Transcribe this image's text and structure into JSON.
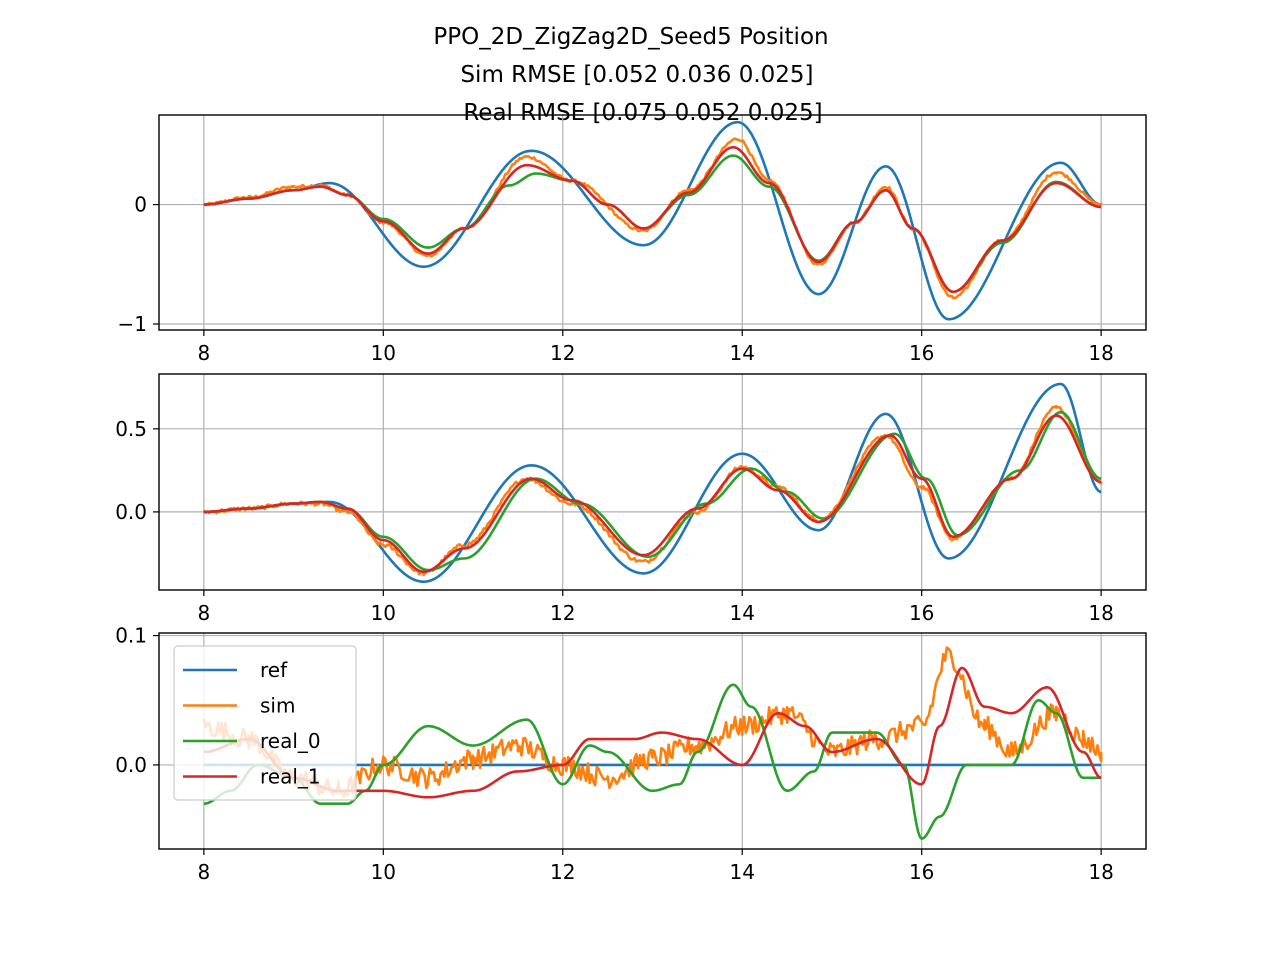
{
  "figure": {
    "title_lines": [
      "PPO_2D_ZigZag2D_Seed5   Position",
      "Sim RMSE [0.052 0.036 0.025]",
      "Real RMSE [0.075 0.052 0.025]"
    ]
  },
  "colors": {
    "ref": "#1f77b4",
    "sim": "#ff7f0e",
    "real_0": "#2ca02c",
    "real_1": "#d62728",
    "grid": "#b0b0b0",
    "axes": "#000000"
  },
  "chart_data": [
    {
      "type": "line",
      "xlim": [
        7.5,
        18.5
      ],
      "ylim": [
        -1.05,
        0.75
      ],
      "xticks": [
        8,
        10,
        12,
        14,
        16,
        18
      ],
      "xtick_labels": [
        "8",
        "10",
        "12",
        "14",
        "16",
        "18"
      ],
      "yticks": [
        -1,
        0
      ],
      "ytick_labels": [
        "−1",
        "0"
      ],
      "grid": true,
      "series": [
        {
          "name": "ref",
          "color": "#1f77b4",
          "noise": 0,
          "points": [
            [
              8,
              0
            ],
            [
              8.5,
              0.05
            ],
            [
              9,
              0.12
            ],
            [
              9.4,
              0.18
            ],
            [
              10.45,
              -0.52
            ],
            [
              11.65,
              0.45
            ],
            [
              12.9,
              -0.34
            ],
            [
              13.95,
              0.69
            ],
            [
              14.85,
              -0.75
            ],
            [
              15.6,
              0.32
            ],
            [
              16.3,
              -0.96
            ],
            [
              17.55,
              0.35
            ],
            [
              18,
              0
            ]
          ]
        },
        {
          "name": "sim",
          "color": "#ff7f0e",
          "noise": 0.012,
          "points": [
            [
              8,
              0
            ],
            [
              8.5,
              0.06
            ],
            [
              9,
              0.15
            ],
            [
              9.3,
              0.16
            ],
            [
              9.6,
              0.08
            ],
            [
              10,
              -0.15
            ],
            [
              10.5,
              -0.43
            ],
            [
              10.9,
              -0.2
            ],
            [
              11.6,
              0.4
            ],
            [
              12.1,
              0.2
            ],
            [
              12.9,
              -0.22
            ],
            [
              13.4,
              0.12
            ],
            [
              13.95,
              0.55
            ],
            [
              14.3,
              0.2
            ],
            [
              14.85,
              -0.5
            ],
            [
              15.25,
              -0.15
            ],
            [
              15.6,
              0.15
            ],
            [
              15.9,
              -0.2
            ],
            [
              16.35,
              -0.78
            ],
            [
              16.9,
              -0.3
            ],
            [
              17.5,
              0.27
            ],
            [
              18,
              0
            ]
          ]
        },
        {
          "name": "real_0",
          "color": "#2ca02c",
          "noise": 0,
          "points": [
            [
              8,
              0
            ],
            [
              8.5,
              0.05
            ],
            [
              9,
              0.12
            ],
            [
              9.3,
              0.15
            ],
            [
              9.6,
              0.08
            ],
            [
              10,
              -0.12
            ],
            [
              10.5,
              -0.36
            ],
            [
              10.9,
              -0.2
            ],
            [
              11.4,
              0.16
            ],
            [
              11.7,
              0.26
            ],
            [
              12.1,
              0.2
            ],
            [
              12.5,
              0
            ],
            [
              12.9,
              -0.2
            ],
            [
              13.4,
              0.08
            ],
            [
              13.9,
              0.41
            ],
            [
              14.3,
              0.15
            ],
            [
              14.85,
              -0.47
            ],
            [
              15.25,
              -0.15
            ],
            [
              15.6,
              0.12
            ],
            [
              15.9,
              -0.2
            ],
            [
              16.35,
              -0.73
            ],
            [
              16.9,
              -0.32
            ],
            [
              17.5,
              0.19
            ],
            [
              18,
              -0.02
            ]
          ]
        },
        {
          "name": "real_1",
          "color": "#d62728",
          "noise": 0,
          "points": [
            [
              8,
              0
            ],
            [
              8.5,
              0.05
            ],
            [
              9,
              0.12
            ],
            [
              9.3,
              0.15
            ],
            [
              9.6,
              0.08
            ],
            [
              10,
              -0.14
            ],
            [
              10.5,
              -0.41
            ],
            [
              10.9,
              -0.2
            ],
            [
              11.6,
              0.33
            ],
            [
              12.1,
              0.2
            ],
            [
              12.5,
              0
            ],
            [
              12.9,
              -0.2
            ],
            [
              13.4,
              0.1
            ],
            [
              13.9,
              0.48
            ],
            [
              14.3,
              0.18
            ],
            [
              14.85,
              -0.48
            ],
            [
              15.25,
              -0.15
            ],
            [
              15.6,
              0.12
            ],
            [
              15.9,
              -0.2
            ],
            [
              16.35,
              -0.73
            ],
            [
              16.9,
              -0.3
            ],
            [
              17.5,
              0.18
            ],
            [
              18,
              -0.02
            ]
          ]
        }
      ]
    },
    {
      "type": "line",
      "xlim": [
        7.5,
        18.5
      ],
      "ylim": [
        -0.47,
        0.83
      ],
      "xticks": [
        8,
        10,
        12,
        14,
        16,
        18
      ],
      "xtick_labels": [
        "8",
        "10",
        "12",
        "14",
        "16",
        "18"
      ],
      "yticks": [
        0.0,
        0.5
      ],
      "ytick_labels": [
        "0.0",
        "0.5"
      ],
      "grid": true,
      "series": [
        {
          "name": "ref",
          "color": "#1f77b4",
          "noise": 0,
          "points": [
            [
              8,
              0
            ],
            [
              8.5,
              0.02
            ],
            [
              9,
              0.05
            ],
            [
              9.4,
              0.06
            ],
            [
              10.45,
              -0.42
            ],
            [
              11.65,
              0.28
            ],
            [
              12.9,
              -0.37
            ],
            [
              14,
              0.35
            ],
            [
              14.85,
              -0.11
            ],
            [
              15.6,
              0.59
            ],
            [
              16.3,
              -0.28
            ],
            [
              17.55,
              0.77
            ],
            [
              18,
              0.12
            ]
          ]
        },
        {
          "name": "sim",
          "color": "#ff7f0e",
          "noise": 0.012,
          "points": [
            [
              8,
              0
            ],
            [
              8.5,
              0.02
            ],
            [
              9,
              0.05
            ],
            [
              9.3,
              0.05
            ],
            [
              9.6,
              0
            ],
            [
              10,
              -0.2
            ],
            [
              10.45,
              -0.37
            ],
            [
              10.9,
              -0.2
            ],
            [
              11.6,
              0.2
            ],
            [
              12.1,
              0.05
            ],
            [
              12.9,
              -0.3
            ],
            [
              13.5,
              0
            ],
            [
              14,
              0.27
            ],
            [
              14.4,
              0.15
            ],
            [
              14.85,
              -0.05
            ],
            [
              15.6,
              0.46
            ],
            [
              16,
              0.15
            ],
            [
              16.35,
              -0.16
            ],
            [
              17,
              0.2
            ],
            [
              17.5,
              0.63
            ],
            [
              18,
              0.18
            ]
          ]
        },
        {
          "name": "real_0",
          "color": "#2ca02c",
          "noise": 0,
          "points": [
            [
              8,
              0
            ],
            [
              8.5,
              0.02
            ],
            [
              9,
              0.05
            ],
            [
              9.3,
              0.06
            ],
            [
              9.6,
              0.02
            ],
            [
              10,
              -0.15
            ],
            [
              10.5,
              -0.35
            ],
            [
              10.9,
              -0.28
            ],
            [
              11.7,
              0.2
            ],
            [
              12.2,
              0.05
            ],
            [
              12.95,
              -0.27
            ],
            [
              13.6,
              0.05
            ],
            [
              14.1,
              0.26
            ],
            [
              14.5,
              0.12
            ],
            [
              14.9,
              -0.04
            ],
            [
              15.7,
              0.47
            ],
            [
              16.05,
              0.2
            ],
            [
              16.4,
              -0.14
            ],
            [
              17.1,
              0.25
            ],
            [
              17.55,
              0.6
            ],
            [
              18,
              0.2
            ]
          ]
        },
        {
          "name": "real_1",
          "color": "#d62728",
          "noise": 0,
          "points": [
            [
              8,
              0
            ],
            [
              8.5,
              0.02
            ],
            [
              9,
              0.05
            ],
            [
              9.3,
              0.06
            ],
            [
              9.6,
              0.02
            ],
            [
              10,
              -0.17
            ],
            [
              10.45,
              -0.36
            ],
            [
              10.9,
              -0.22
            ],
            [
              11.65,
              0.2
            ],
            [
              12.1,
              0.07
            ],
            [
              12.9,
              -0.26
            ],
            [
              13.5,
              0.02
            ],
            [
              14,
              0.26
            ],
            [
              14.4,
              0.13
            ],
            [
              14.85,
              -0.06
            ],
            [
              15.65,
              0.46
            ],
            [
              16,
              0.2
            ],
            [
              16.35,
              -0.15
            ],
            [
              17,
              0.2
            ],
            [
              17.5,
              0.58
            ],
            [
              18,
              0.18
            ]
          ]
        }
      ]
    },
    {
      "type": "line",
      "xlim": [
        7.5,
        18.5
      ],
      "ylim": [
        -0.065,
        0.102
      ],
      "xticks": [
        8,
        10,
        12,
        14,
        16,
        18
      ],
      "xtick_labels": [
        "8",
        "10",
        "12",
        "14",
        "16",
        "18"
      ],
      "yticks": [
        0.0,
        0.1
      ],
      "ytick_labels": [
        "0.0",
        "0.1"
      ],
      "grid": true,
      "legend": {
        "loc": "upper-left",
        "entries": [
          "ref",
          "sim",
          "real_0",
          "real_1"
        ]
      },
      "series": [
        {
          "name": "ref",
          "color": "#1f77b4",
          "noise": 0,
          "points": [
            [
              8,
              0
            ],
            [
              18,
              0
            ]
          ]
        },
        {
          "name": "sim",
          "color": "#ff7f0e",
          "noise": 0.008,
          "points": [
            [
              8,
              0.03
            ],
            [
              8.5,
              0.02
            ],
            [
              9,
              -0.01
            ],
            [
              9.5,
              -0.02
            ],
            [
              10,
              0
            ],
            [
              10.5,
              -0.01
            ],
            [
              11,
              0.005
            ],
            [
              11.5,
              0.015
            ],
            [
              12,
              0
            ],
            [
              12.5,
              -0.01
            ],
            [
              13,
              0.005
            ],
            [
              13.5,
              0.015
            ],
            [
              14,
              0.03
            ],
            [
              14.5,
              0.04
            ],
            [
              15,
              0.01
            ],
            [
              15.5,
              0.02
            ],
            [
              16,
              0.03
            ],
            [
              16.3,
              0.085
            ],
            [
              16.7,
              0.03
            ],
            [
              17,
              0.01
            ],
            [
              17.5,
              0.04
            ],
            [
              17.8,
              0.02
            ],
            [
              18,
              0.01
            ]
          ]
        },
        {
          "name": "real_0",
          "color": "#2ca02c",
          "noise": 0,
          "points": [
            [
              8,
              -0.03
            ],
            [
              8.3,
              -0.02
            ],
            [
              8.6,
              0
            ],
            [
              9,
              -0.01
            ],
            [
              9.3,
              -0.03
            ],
            [
              9.6,
              -0.03
            ],
            [
              9.8,
              -0.02
            ],
            [
              10,
              0
            ],
            [
              10.5,
              0.03
            ],
            [
              11,
              0.015
            ],
            [
              11.6,
              0.035
            ],
            [
              12,
              -0.015
            ],
            [
              12.3,
              0.015
            ],
            [
              12.5,
              0.01
            ],
            [
              13,
              -0.02
            ],
            [
              13.3,
              -0.015
            ],
            [
              13.5,
              0.01
            ],
            [
              13.9,
              0.062
            ],
            [
              14.1,
              0.045
            ],
            [
              14.5,
              -0.02
            ],
            [
              14.8,
              -0.005
            ],
            [
              15,
              0.025
            ],
            [
              15.5,
              0.025
            ],
            [
              15.8,
              0
            ],
            [
              16,
              -0.057
            ],
            [
              16.2,
              -0.04
            ],
            [
              16.5,
              0
            ],
            [
              17,
              0
            ],
            [
              17.3,
              0.05
            ],
            [
              17.5,
              0.04
            ],
            [
              17.8,
              -0.01
            ],
            [
              18,
              -0.01
            ]
          ]
        },
        {
          "name": "real_1",
          "color": "#d62728",
          "noise": 0,
          "points": [
            [
              8,
              0.01
            ],
            [
              8.5,
              0.02
            ],
            [
              9,
              -0.01
            ],
            [
              9.5,
              -0.02
            ],
            [
              10,
              -0.02
            ],
            [
              10.5,
              -0.025
            ],
            [
              11,
              -0.02
            ],
            [
              11.5,
              -0.005
            ],
            [
              12,
              0
            ],
            [
              12.3,
              0.02
            ],
            [
              12.8,
              0.02
            ],
            [
              13.1,
              0.025
            ],
            [
              13.5,
              0.02
            ],
            [
              14,
              0
            ],
            [
              14.4,
              0.04
            ],
            [
              14.7,
              0.03
            ],
            [
              15,
              0.01
            ],
            [
              15.5,
              0.02
            ],
            [
              16,
              -0.015
            ],
            [
              16.2,
              0.03
            ],
            [
              16.45,
              0.075
            ],
            [
              16.7,
              0.045
            ],
            [
              17,
              0.04
            ],
            [
              17.4,
              0.06
            ],
            [
              17.8,
              0.01
            ],
            [
              18,
              -0.01
            ]
          ]
        }
      ]
    }
  ]
}
